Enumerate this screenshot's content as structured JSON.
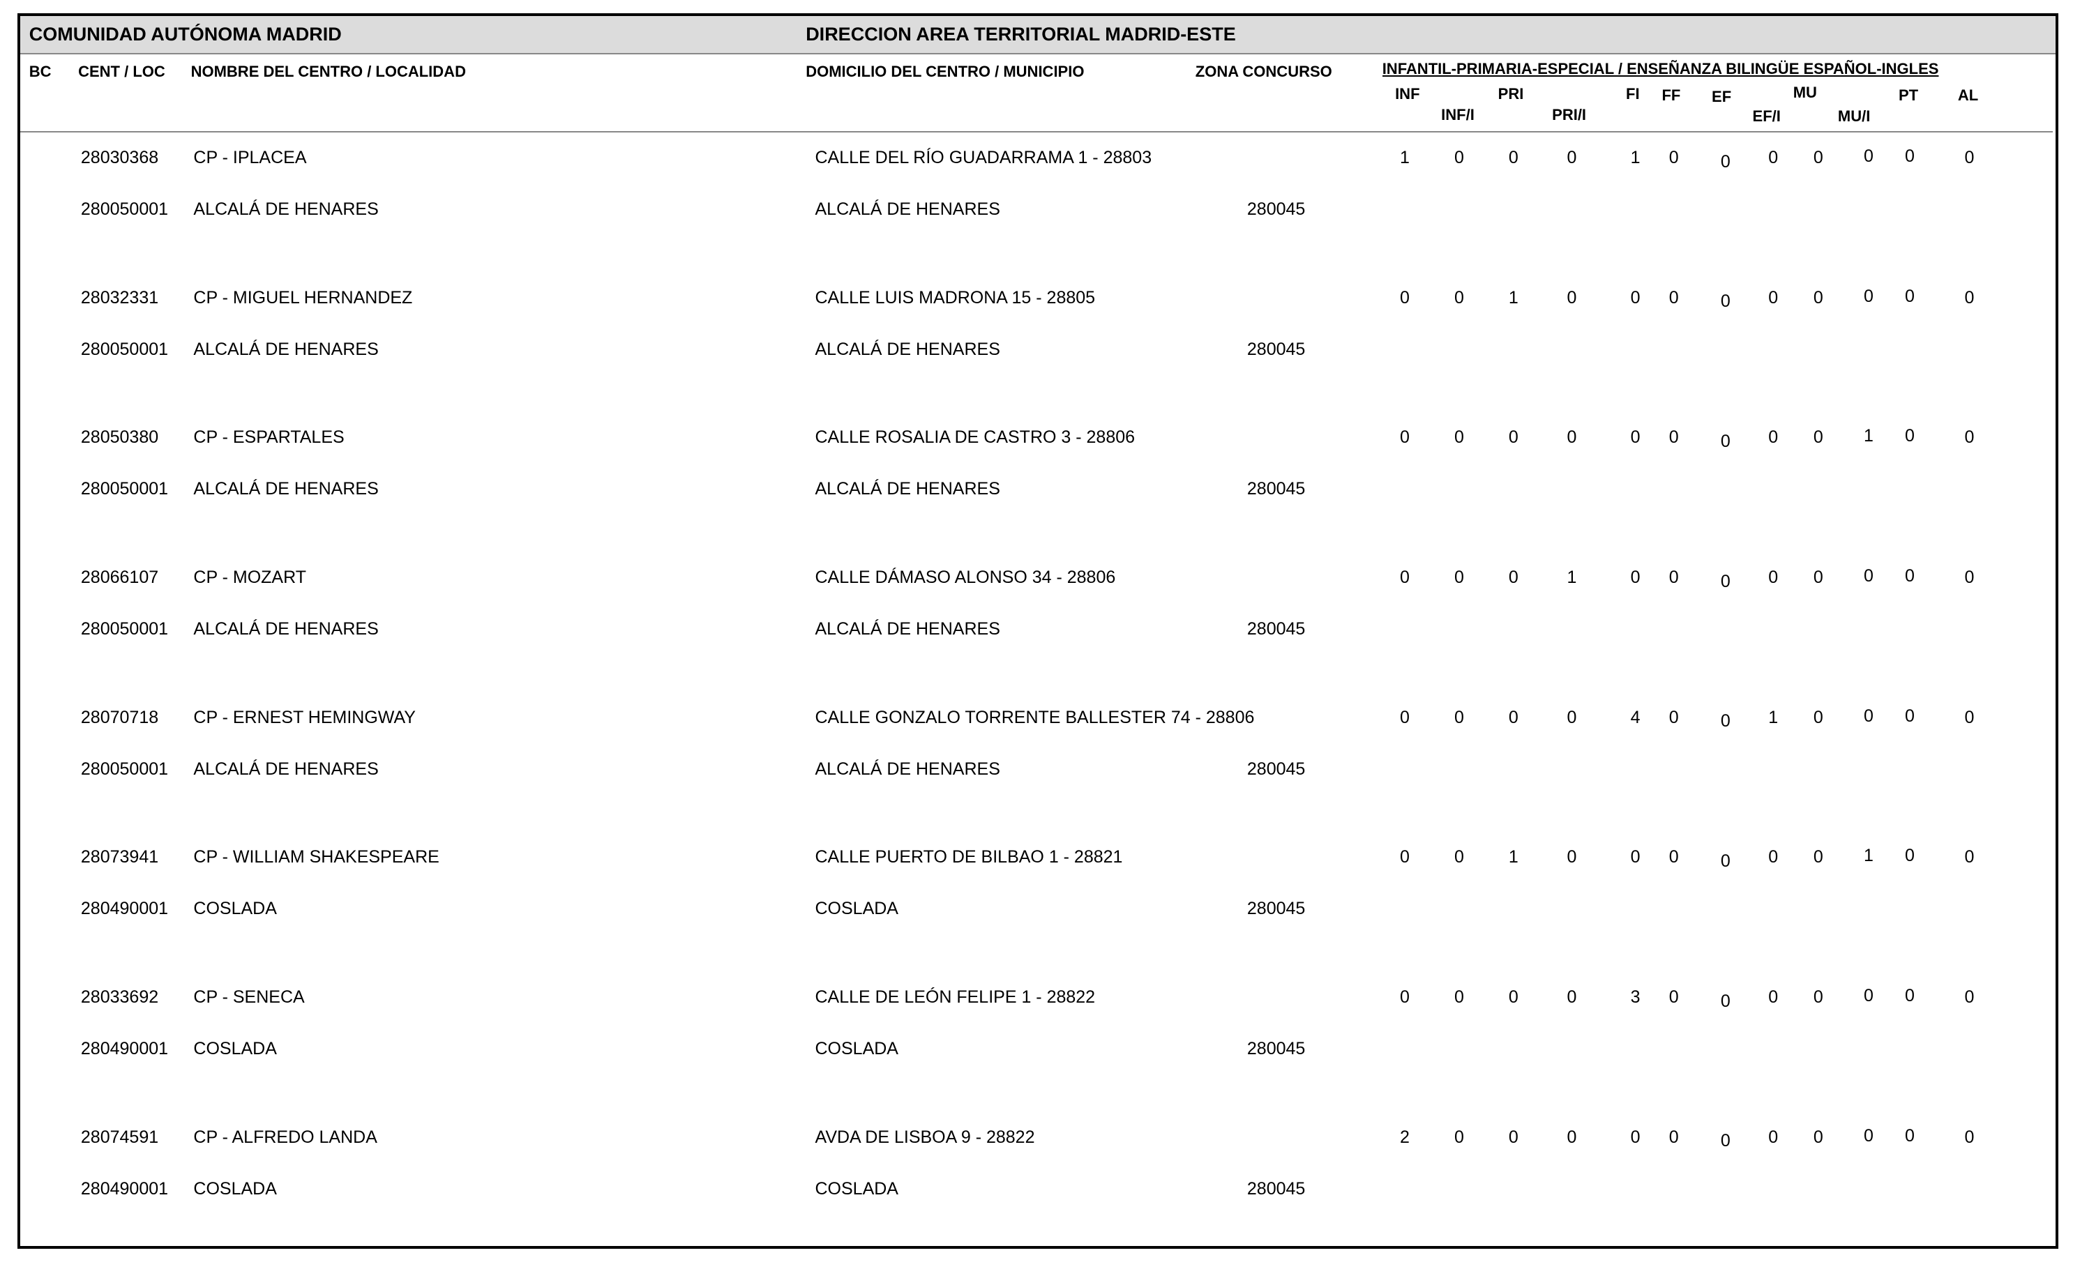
{
  "header": {
    "left": "COMUNIDAD AUTÓNOMA MADRID",
    "right": "DIRECCION AREA TERRITORIAL MADRID-ESTE"
  },
  "columns": {
    "bc": "BC",
    "cent": "CENT / LOC",
    "nombre": "NOMBRE DEL CENTRO / LOCALIDAD",
    "domicilio": "DOMICILIO DEL CENTRO / MUNICIPIO",
    "zona": "ZONA CONCURSO",
    "group": "INFANTIL-PRIMARIA-ESPECIAL / ENSEÑANZA BILINGÜE ESPAÑOL-INGLES",
    "specialties": [
      "INF",
      "INF/I",
      "PRI",
      "PRI/I",
      "FI",
      "FF",
      "EF",
      "EF/I",
      "MU",
      "MU/I",
      "PT",
      "AL"
    ]
  },
  "rows": [
    {
      "code": "28030368",
      "name": "CP - IPLACEA",
      "address": "CALLE DEL RÍO GUADARRAMA 1 - 28803",
      "loc_code": "280050001",
      "locality": "ALCALÁ DE HENARES",
      "municipality": "ALCALÁ DE HENARES",
      "zona": "280045",
      "counts": [
        1,
        0,
        0,
        0,
        1,
        0,
        0,
        0,
        0,
        0,
        0,
        0
      ]
    },
    {
      "code": "28032331",
      "name": "CP - MIGUEL HERNANDEZ",
      "address": "CALLE LUIS MADRONA 15 - 28805",
      "loc_code": "280050001",
      "locality": "ALCALÁ DE HENARES",
      "municipality": "ALCALÁ DE HENARES",
      "zona": "280045",
      "counts": [
        0,
        0,
        1,
        0,
        0,
        0,
        0,
        0,
        0,
        0,
        0,
        0
      ]
    },
    {
      "code": "28050380",
      "name": "CP - ESPARTALES",
      "address": "CALLE ROSALIA DE CASTRO 3 - 28806",
      "loc_code": "280050001",
      "locality": "ALCALÁ DE HENARES",
      "municipality": "ALCALÁ DE HENARES",
      "zona": "280045",
      "counts": [
        0,
        0,
        0,
        0,
        0,
        0,
        0,
        0,
        0,
        1,
        0,
        0
      ]
    },
    {
      "code": "28066107",
      "name": "CP - MOZART",
      "address": "CALLE DÁMASO ALONSO 34 - 28806",
      "loc_code": "280050001",
      "locality": "ALCALÁ DE HENARES",
      "municipality": "ALCALÁ DE HENARES",
      "zona": "280045",
      "counts": [
        0,
        0,
        0,
        1,
        0,
        0,
        0,
        0,
        0,
        0,
        0,
        0
      ]
    },
    {
      "code": "28070718",
      "name": "CP - ERNEST HEMINGWAY",
      "address": "CALLE GONZALO TORRENTE BALLESTER 74 - 28806",
      "loc_code": "280050001",
      "locality": "ALCALÁ DE HENARES",
      "municipality": "ALCALÁ DE HENARES",
      "zona": "280045",
      "counts": [
        0,
        0,
        0,
        0,
        4,
        0,
        0,
        1,
        0,
        0,
        0,
        0
      ]
    },
    {
      "code": "28073941",
      "name": "CP - WILLIAM SHAKESPEARE",
      "address": "CALLE PUERTO DE BILBAO 1 - 28821",
      "loc_code": "280490001",
      "locality": "COSLADA",
      "municipality": "COSLADA",
      "zona": "280045",
      "counts": [
        0,
        0,
        1,
        0,
        0,
        0,
        0,
        0,
        0,
        1,
        0,
        0
      ]
    },
    {
      "code": "28033692",
      "name": "CP - SENECA",
      "address": "CALLE DE LEÓN FELIPE 1 - 28822",
      "loc_code": "280490001",
      "locality": "COSLADA",
      "municipality": "COSLADA",
      "zona": "280045",
      "counts": [
        0,
        0,
        0,
        0,
        3,
        0,
        0,
        0,
        0,
        0,
        0,
        0
      ]
    },
    {
      "code": "28074591",
      "name": "CP - ALFREDO LANDA",
      "address": "AVDA DE LISBOA 9 - 28822",
      "loc_code": "280490001",
      "locality": "COSLADA",
      "municipality": "COSLADA",
      "zona": "280045",
      "counts": [
        2,
        0,
        0,
        0,
        0,
        0,
        0,
        0,
        0,
        0,
        0,
        0
      ]
    }
  ]
}
